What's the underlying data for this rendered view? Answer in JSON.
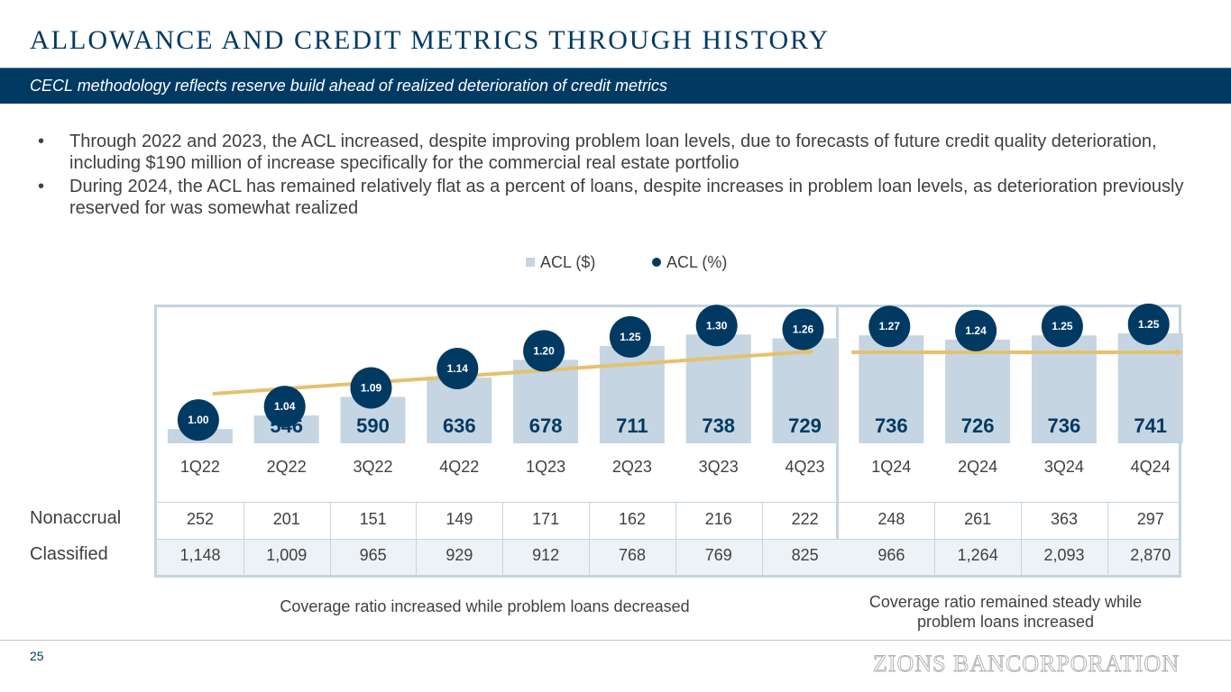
{
  "title": "ALLOWANCE AND CREDIT METRICS THROUGH HISTORY",
  "subtitle": "CECL methodology reflects reserve build ahead of realized deterioration of credit metrics",
  "bullets": [
    "Through 2022 and 2023, the ACL increased, despite improving problem loan levels, due to forecasts of future credit quality deterioration, including $190 million of increase specifically for the commercial real estate portfolio",
    "During 2024, the ACL has remained relatively flat as a percent of loans, despite increases in problem loan levels, as deterioration previously reserved for was somewhat realized"
  ],
  "bullet_char": "•",
  "chart_data": {
    "type": "bar",
    "title": "",
    "legend": [
      "ACL ($)",
      "ACL (%)"
    ],
    "legend_position": "top-center",
    "categories": [
      "1Q22",
      "2Q22",
      "3Q22",
      "4Q22",
      "1Q23",
      "2Q23",
      "3Q23",
      "4Q23",
      "1Q24",
      "2Q24",
      "3Q24",
      "4Q24"
    ],
    "series": [
      {
        "name": "ACL ($)",
        "type": "bar",
        "values": [
          514,
          546,
          590,
          636,
          678,
          711,
          738,
          729,
          736,
          726,
          736,
          741
        ]
      },
      {
        "name": "ACL (%)",
        "type": "marker",
        "values": [
          "1.00",
          "1.04",
          "1.09",
          "1.14",
          "1.20",
          "1.25",
          "1.30",
          "1.26",
          "1.27",
          "1.24",
          "1.25",
          "1.25"
        ]
      }
    ],
    "ylim": [
      0,
      800
    ],
    "colors": {
      "bar": "#C5D5E1",
      "marker": "#003A63",
      "bar_label": "#003A63",
      "trend": "#E4C16F"
    }
  },
  "table": {
    "rows": [
      {
        "label": "Nonaccrual",
        "values": [
          "252",
          "201",
          "151",
          "149",
          "171",
          "162",
          "216",
          "222",
          "248",
          "261",
          "363",
          "297"
        ]
      },
      {
        "label": "Classified",
        "values": [
          "1,148",
          "1,009",
          "965",
          "929",
          "912",
          "768",
          "769",
          "825",
          "966",
          "1,264",
          "2,093",
          "2,870"
        ]
      }
    ]
  },
  "captions": {
    "left": "Coverage ratio increased while problem loans decreased",
    "right_line1": "Coverage ratio remained steady while",
    "right_line2": "problem loans increased"
  },
  "footer": {
    "page_number": "25",
    "logo": "ZIONS BANCORPORATION"
  }
}
